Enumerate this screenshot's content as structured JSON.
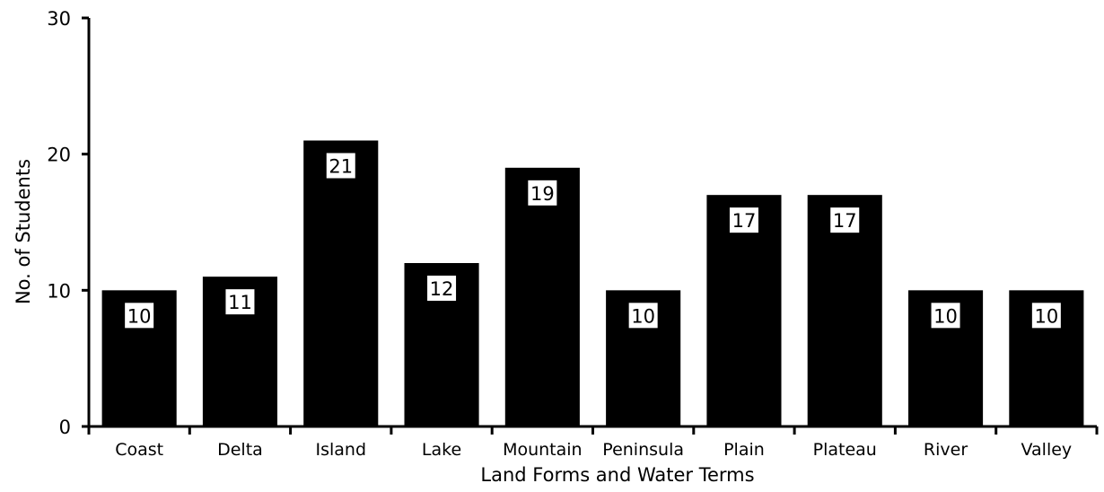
{
  "chart_data": {
    "type": "bar",
    "title": "",
    "xlabel": "Land Forms and Water Terms",
    "ylabel": "No. of Students",
    "ylim": [
      0,
      30
    ],
    "yticks": [
      0,
      10,
      20,
      30
    ],
    "grid": false,
    "categories": [
      "Coast",
      "Delta",
      "Island",
      "Lake",
      "Mountain",
      "Peninsula",
      "Plain",
      "Plateau",
      "River",
      "Valley"
    ],
    "values": [
      10,
      11,
      21,
      12,
      19,
      10,
      17,
      17,
      10,
      10
    ],
    "data_labels": [
      "10",
      "11",
      "21",
      "12",
      "19",
      "10",
      "17",
      "17",
      "10",
      "10"
    ],
    "bar_color": "#000000",
    "label_box_color": "#ffffff"
  }
}
